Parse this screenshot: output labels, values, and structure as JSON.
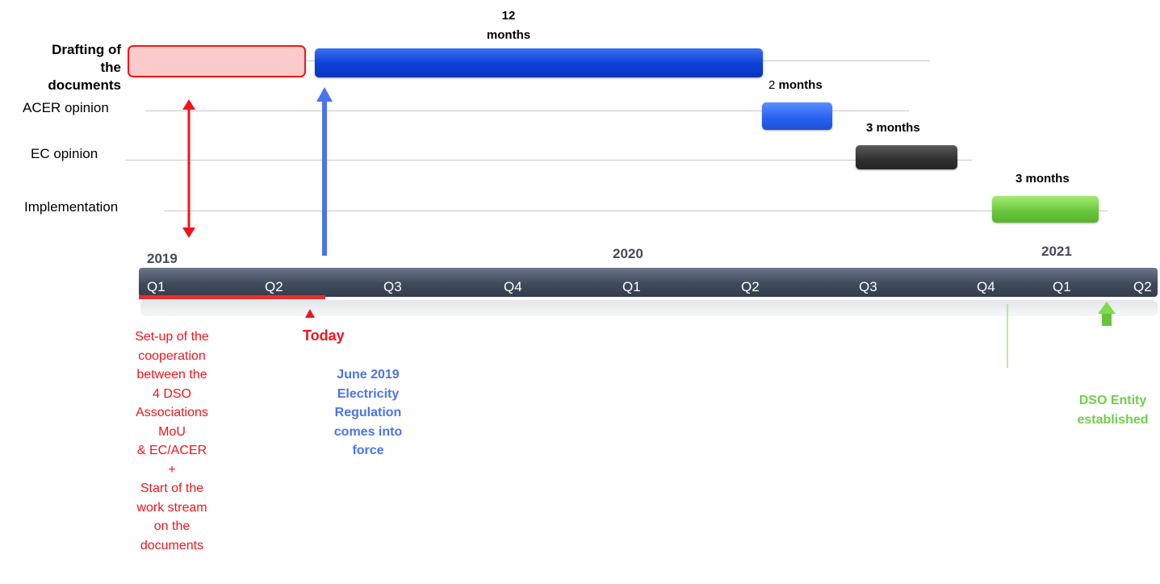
{
  "rows": {
    "drafting": "Drafting of the documents",
    "acer": "ACER opinion",
    "ec": "EC opinion",
    "implementation": "Implementation"
  },
  "durations": {
    "drafting_num": "12",
    "drafting_unit": "months",
    "acer_num": "2",
    "acer_unit": "months",
    "ec": "3 months",
    "implementation": "3 months"
  },
  "years": [
    "2019",
    "2020",
    "2021"
  ],
  "quarters": [
    "Q1",
    "Q2",
    "Q3",
    "Q4",
    "Q1",
    "Q2",
    "Q3",
    "Q4",
    "Q1",
    "Q2"
  ],
  "today": "Today",
  "setup_note": [
    "Set-up of the",
    "cooperation",
    "between the",
    "4 DSO",
    "Associations",
    "MoU",
    "& EC/ACER",
    "+",
    "Start of the",
    "work stream",
    "on the",
    "documents"
  ],
  "june_note": [
    "June 2019",
    "Electricity",
    "Regulation",
    "comes into",
    "force"
  ],
  "dso_note": [
    "DSO Entity",
    "established"
  ],
  "colors": {
    "red": "#f0151a",
    "blue": "#0b3fd6",
    "dark": "#333333",
    "green": "#66c53a",
    "axis": "#3f4a5b"
  }
}
